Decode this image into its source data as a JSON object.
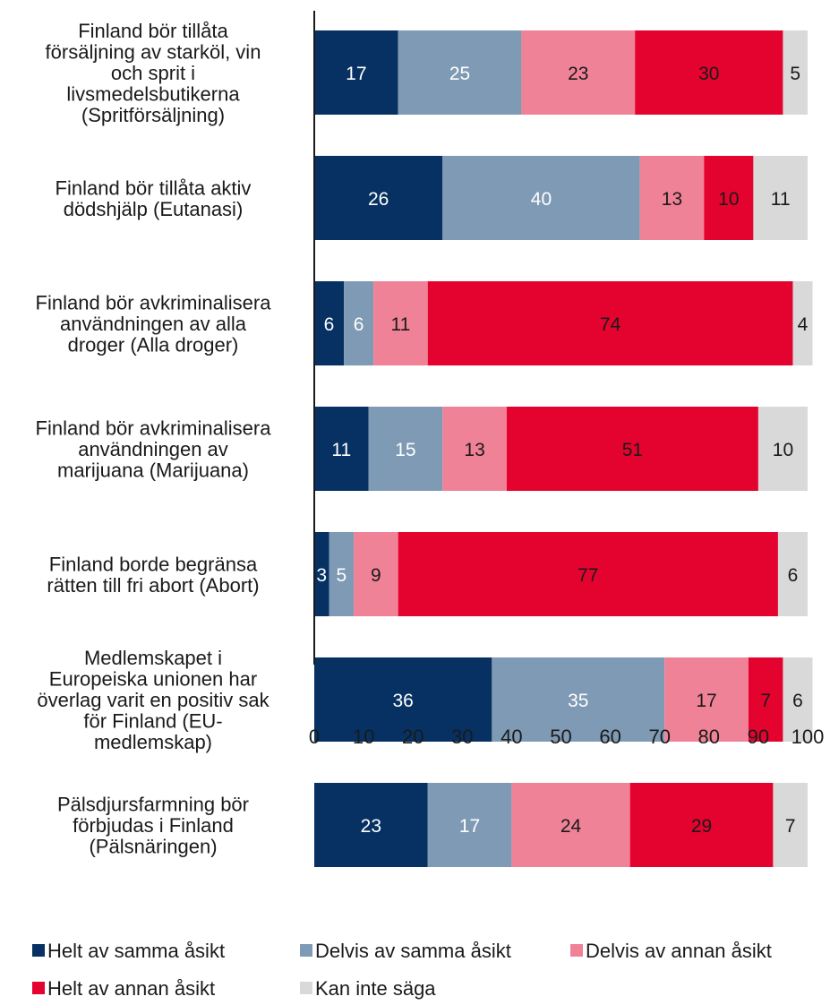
{
  "chart_data": {
    "type": "bar",
    "orientation": "horizontal",
    "stacked": true,
    "categories": [
      "Finland bör tillåta försäljning av starköl, vin och sprit i livsmedelsbutikerna (Spritförsäljning)",
      "Finland bör tillåta aktiv dödshjälp (Eutanasi)",
      "Finland bör avkriminalisera användningen av alla droger (Alla droger)",
      "Finland bör avkriminalisera användningen av marijuana (Marijuana)",
      "Finland borde begränsa rätten till fri abort (Abort)",
      "Medlemskapet i Europeiska unionen har överlag varit en positiv sak för Finland (EU-medlemskap)",
      "Pälsdjursfarmning bör förbjudas i Finland (Pälsnäringen)"
    ],
    "category_lines": [
      [
        "Finland bör tillåta",
        "försäljning av starköl, vin",
        "och sprit i",
        "livsmedelsbutikerna",
        "(Spritförsäljning)"
      ],
      [
        "Finland bör tillåta aktiv",
        "dödshjälp (Eutanasi)"
      ],
      [
        "Finland bör avkriminalisera",
        "användningen av alla",
        "droger (Alla droger)"
      ],
      [
        "Finland bör avkriminalisera",
        "användningen av",
        "marijuana (Marijuana)"
      ],
      [
        "Finland borde begränsa",
        "rätten till fri abort (Abort)"
      ],
      [
        "Medlemskapet i",
        "Europeiska unionen har",
        "överlag varit en positiv sak",
        "för Finland (EU-",
        "medlemskap)"
      ],
      [
        "Pälsdjursfarmning bör",
        "förbjudas i Finland",
        "(Pälsnäringen)"
      ]
    ],
    "series": [
      {
        "name": "Helt av samma åsikt",
        "color": "#063162",
        "label_color": "#ffffff",
        "values": [
          17,
          26,
          6,
          11,
          3,
          36,
          23
        ]
      },
      {
        "name": "Delvis av samma åsikt",
        "color": "#7f9ab4",
        "label_color": "#ffffff",
        "values": [
          25,
          40,
          6,
          15,
          5,
          35,
          17
        ]
      },
      {
        "name": "Delvis av annan åsikt",
        "color": "#f08297",
        "label_color": "#1a1a1a",
        "values": [
          23,
          13,
          11,
          13,
          9,
          17,
          24
        ]
      },
      {
        "name": "Helt av annan åsikt",
        "color": "#e4032f",
        "label_color": "#1a1a1a",
        "values": [
          30,
          10,
          74,
          51,
          77,
          7,
          29
        ]
      },
      {
        "name": "Kan inte säga",
        "color": "#d9d9d9",
        "label_color": "#1a1a1a",
        "values": [
          5,
          11,
          4,
          10,
          6,
          6,
          7
        ]
      }
    ],
    "x_ticks": [
      "0",
      "10",
      "20",
      "30",
      "40",
      "50",
      "60",
      "70",
      "80",
      "90",
      "100"
    ],
    "xlim": [
      0,
      100
    ],
    "grid": false,
    "legend_position": "bottom"
  }
}
